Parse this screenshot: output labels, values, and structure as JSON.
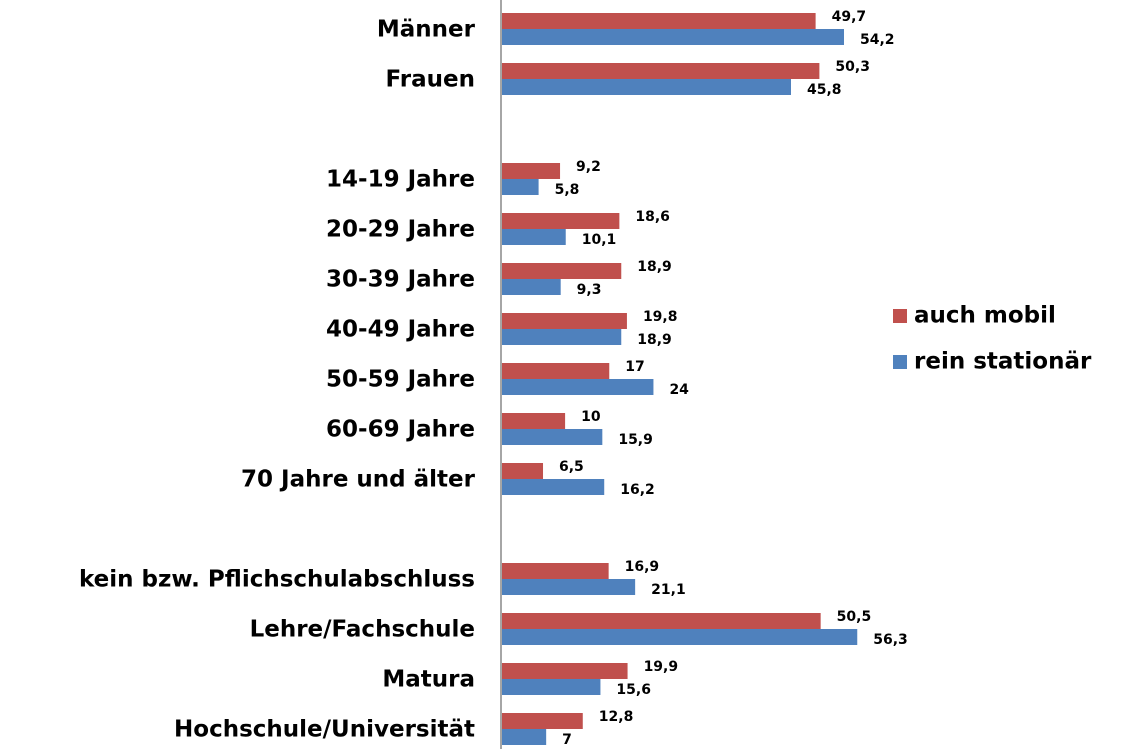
{
  "chart_data": {
    "type": "bar",
    "orientation": "horizontal",
    "categories": [
      "Männer",
      "Frauen",
      null,
      "14-19 Jahre",
      "20-29 Jahre",
      "30-39 Jahre",
      "40-49 Jahre",
      "50-59 Jahre",
      "60-69 Jahre",
      "70 Jahre und älter",
      null,
      "kein bzw. Pflichschulabschluss",
      "Lehre/Fachschule",
      "Matura",
      "Hochschule/Universität"
    ],
    "series": [
      {
        "name": "auch mobil",
        "color": "#c0504d",
        "values": [
          49.7,
          50.3,
          null,
          9.2,
          18.6,
          18.9,
          19.8,
          17,
          10,
          6.5,
          null,
          16.9,
          50.5,
          19.9,
          12.8
        ],
        "value_labels": [
          "49,7",
          "50,3",
          null,
          "9,2",
          "18,6",
          "18,9",
          "19,8",
          "17",
          "10",
          "6,5",
          null,
          "16,9",
          "50,5",
          "19,9",
          "12,8"
        ]
      },
      {
        "name": "rein stationär",
        "color": "#4f81bd",
        "values": [
          54.2,
          45.8,
          null,
          5.8,
          10.1,
          9.3,
          18.9,
          24,
          15.9,
          16.2,
          null,
          21.1,
          56.3,
          15.6,
          7
        ],
        "value_labels": [
          "54,2",
          "45,8",
          null,
          "5,8",
          "10,1",
          "9,3",
          "18,9",
          "24",
          "15,9",
          "16,2",
          null,
          "21,1",
          "56,3",
          "15,6",
          "7"
        ]
      }
    ],
    "legend": "right"
  }
}
